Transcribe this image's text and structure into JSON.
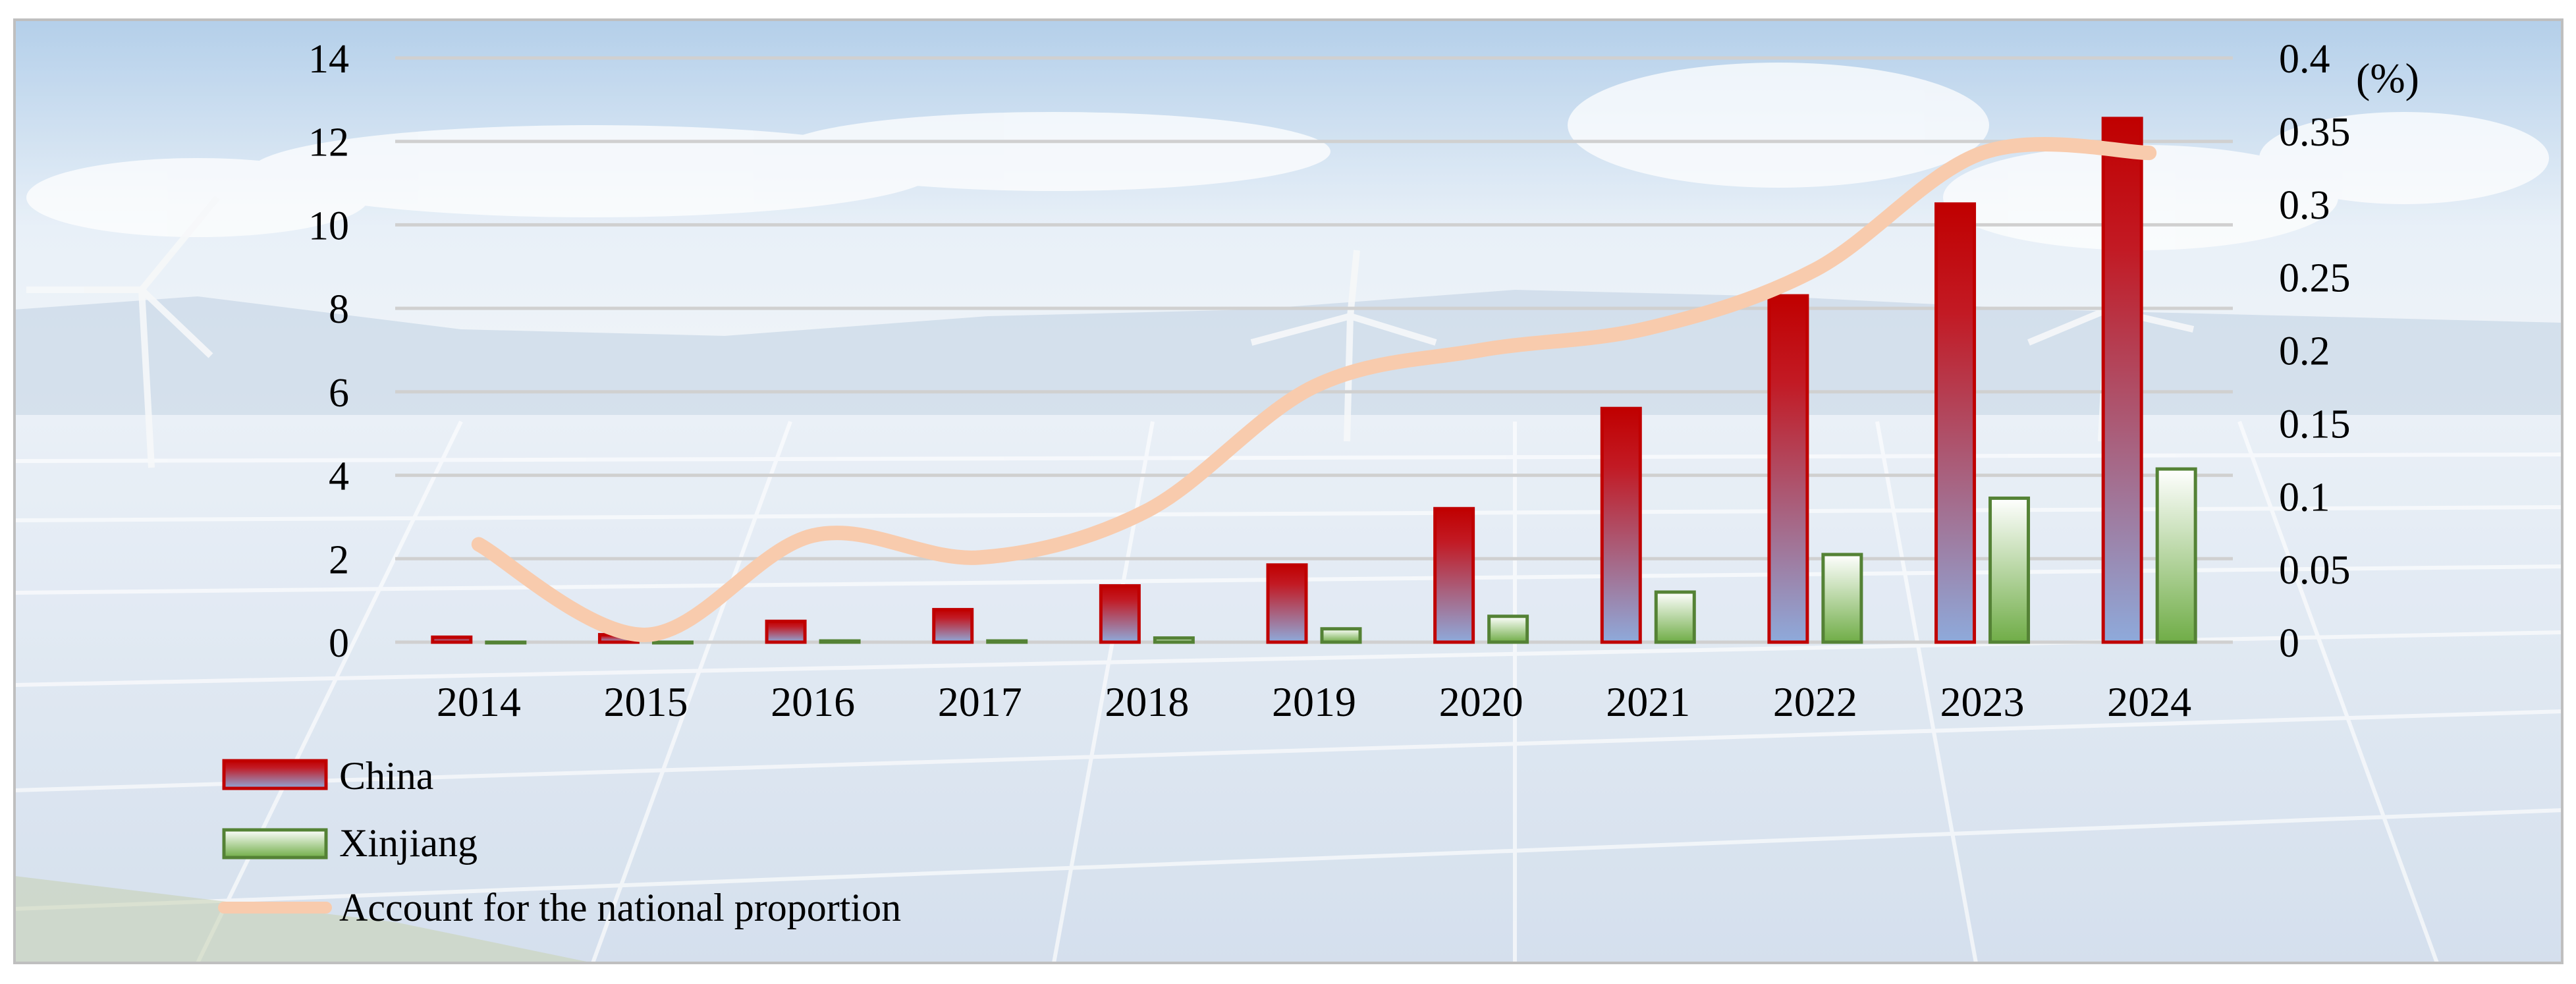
{
  "chart_data": {
    "type": "bar",
    "title": "",
    "xlabel": "",
    "ylabel": "",
    "y2label": "(%)",
    "categories": [
      "2014",
      "2015",
      "2016",
      "2017",
      "2018",
      "2019",
      "2020",
      "2021",
      "2022",
      "2023",
      "2024"
    ],
    "ylim": [
      0,
      14
    ],
    "y_ticks": [
      "0",
      "2",
      "4",
      "6",
      "8",
      "10",
      "12",
      "14"
    ],
    "y2lim": [
      0,
      0.4
    ],
    "y2_ticks": [
      "0",
      "0.05",
      "0.1",
      "0.15",
      "0.2",
      "0.25",
      "0.3",
      "0.35",
      "0.4"
    ],
    "grid": true,
    "legend_position": "bottom-left",
    "series": [
      {
        "name": "China",
        "type": "bar",
        "axis": "left",
        "values": [
          0.12,
          0.18,
          0.5,
          0.78,
          1.35,
          1.85,
          3.2,
          5.6,
          8.3,
          10.5,
          12.55
        ]
      },
      {
        "name": "Xinjiang",
        "type": "bar",
        "axis": "left",
        "values": [
          0,
          0,
          0.03,
          0.03,
          0.1,
          0.32,
          0.62,
          1.2,
          2.1,
          3.45,
          4.15
        ]
      },
      {
        "name": "Account for the national proportion",
        "type": "line",
        "axis": "right",
        "values": [
          0.067,
          0.005,
          0.073,
          0.058,
          0.09,
          0.175,
          0.2,
          0.215,
          0.255,
          0.335,
          0.335
        ]
      }
    ]
  },
  "colors": {
    "china_top": "#c00000",
    "china_bottom": "#8eaadb",
    "xinjiang_stroke": "#548235",
    "xinjiang_fill": "#d9ead3",
    "proportion_line": "#f8cbad"
  }
}
